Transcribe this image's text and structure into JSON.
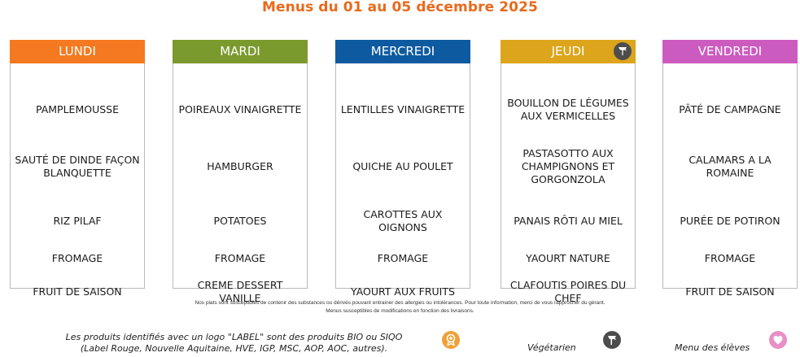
{
  "title": "Menus du 01 au 05 décembre 2025",
  "days": [
    {
      "name": "LUNDI",
      "color": "#f47920",
      "items": [
        "PAMPLEMOUSSE",
        "SAUTÉ DE DINDE FAÇON BLANQUETTE",
        "RIZ PILAF",
        "FROMAGE",
        "FRUIT DE SAISON"
      ]
    },
    {
      "name": "MARDI",
      "color": "#7b9a2d",
      "items": [
        "POIREAUX VINAIGRETTE",
        "HAMBURGER",
        "POTATOES",
        "FROMAGE",
        "CREME DESSERT VANILLE"
      ]
    },
    {
      "name": "MERCREDI",
      "color": "#0d5aa0",
      "items": [
        "LENTILLES VINAIGRETTE",
        "QUICHE AU POULET",
        "CAROTTES AUX OIGNONS",
        "FROMAGE",
        "YAOURT AUX FRUITS"
      ]
    },
    {
      "name": "JEUDI",
      "color": "#dca51c",
      "badge": "vegetarian-icon",
      "items": [
        "BOUILLON DE LÉGUMES AUX VERMICELLES",
        "PASTASOTTO AUX CHAMPIGNONS ET GORGONZOLA",
        "PANAIS RÔTI AU MIEL",
        "YAOURT NATURE",
        "CLAFOUTIS POIRES DU CHEF"
      ]
    },
    {
      "name": "VENDREDI",
      "color": "#cc5bbf",
      "items": [
        "PÂTÉ DE CAMPAGNE",
        "CALAMARS A LA ROMAINE",
        "PURÉE DE POTIRON",
        "FROMAGE",
        "FRUIT DE SAISON"
      ]
    }
  ],
  "notes": {
    "allergens": "Nos plats sont susceptibles de contenir des substances ou dérivés pouvant entrainer des allergies ou intolérances. Pour toute information, merci de vous rapprocher du gérant.",
    "changes": "Menus susceptibles de modifications en fonction des livraisons."
  },
  "legend": {
    "label_text_1": "Les produits identifiés avec un logo \"LABEL\" sont des produits BIO ou SIQO",
    "label_text_2": "(Label Rouge, Nouvelle Aquitaine, HVE, IGP, MSC, AOP, AOC, autres).",
    "label_icon": "label-icon",
    "label_color": "#f0a035",
    "vegetarian": "Végétarien",
    "vegetarian_icon": "vegetarian-icon",
    "vegetarian_color": "#4d4d4d",
    "students": "Menu des élèves",
    "students_icon": "heart-icon",
    "students_color": "#e98fc6"
  }
}
